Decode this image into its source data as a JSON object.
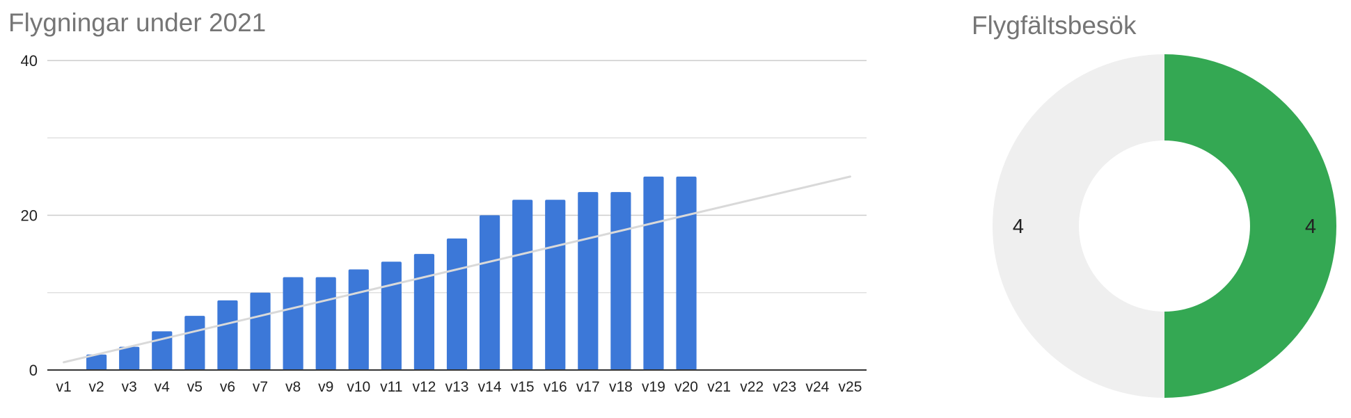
{
  "colors": {
    "bar": "#3c78d8",
    "trendline": "#d9d9d9",
    "gridline": "#e0e0e0",
    "gridline_major": "#cccccc",
    "axis": "#333333",
    "title": "#757575",
    "donut_green": "#34a853",
    "donut_grey": "#efefef"
  },
  "chart_data": [
    {
      "type": "bar",
      "title": "Flygningar under 2021",
      "xlabel": "",
      "ylabel": "",
      "categories": [
        "v1",
        "v2",
        "v3",
        "v4",
        "v5",
        "v6",
        "v7",
        "v8",
        "v9",
        "v10",
        "v11",
        "v12",
        "v13",
        "v14",
        "v15",
        "v16",
        "v17",
        "v18",
        "v19",
        "v20",
        "v21",
        "v22",
        "v23",
        "v24",
        "v25"
      ],
      "values": [
        0,
        2,
        3,
        5,
        7,
        9,
        10,
        12,
        12,
        13,
        14,
        15,
        17,
        20,
        22,
        22,
        23,
        23,
        25,
        25,
        null,
        null,
        null,
        null,
        null
      ],
      "ylim": [
        0,
        40
      ],
      "yticks": [
        0,
        20,
        40
      ],
      "minor_gridlines": [
        10,
        30
      ],
      "trendline": {
        "type": "linear",
        "start": 1,
        "end": 25
      },
      "legend": "none",
      "grid": true
    },
    {
      "type": "pie",
      "title": "Flygfältsbesök",
      "donut": true,
      "slices": [
        {
          "value": 4,
          "label": "4",
          "color": "#34a853"
        },
        {
          "value": 4,
          "label": "4",
          "color": "#efefef"
        }
      ],
      "legend": "none"
    }
  ]
}
